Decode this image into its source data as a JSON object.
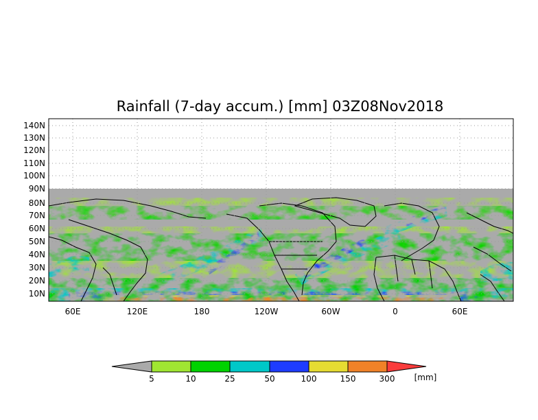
{
  "map": {
    "title": "Rainfall (7-day accum.) [mm] 03Z08Nov2018",
    "lat_labels": [
      "140N",
      "130N",
      "120N",
      "110N",
      "100N",
      "90N",
      "80N",
      "70N",
      "60N",
      "50N",
      "40N",
      "30N",
      "20N",
      "10N"
    ],
    "lon_labels": [
      "60E",
      "120E",
      "180",
      "120W",
      "60W",
      "0",
      "60E"
    ],
    "background_color": "#aaaaaa",
    "grid": "dotted"
  },
  "colorbar": {
    "ticks": [
      "5",
      "10",
      "25",
      "50",
      "100",
      "150",
      "300"
    ],
    "unit": "[mm]",
    "colors": [
      "#aaaaaa",
      "#a0e632",
      "#00d200",
      "#00c8c8",
      "#1e3cff",
      "#e6dc32",
      "#f08228",
      "#fa3c3c"
    ]
  }
}
